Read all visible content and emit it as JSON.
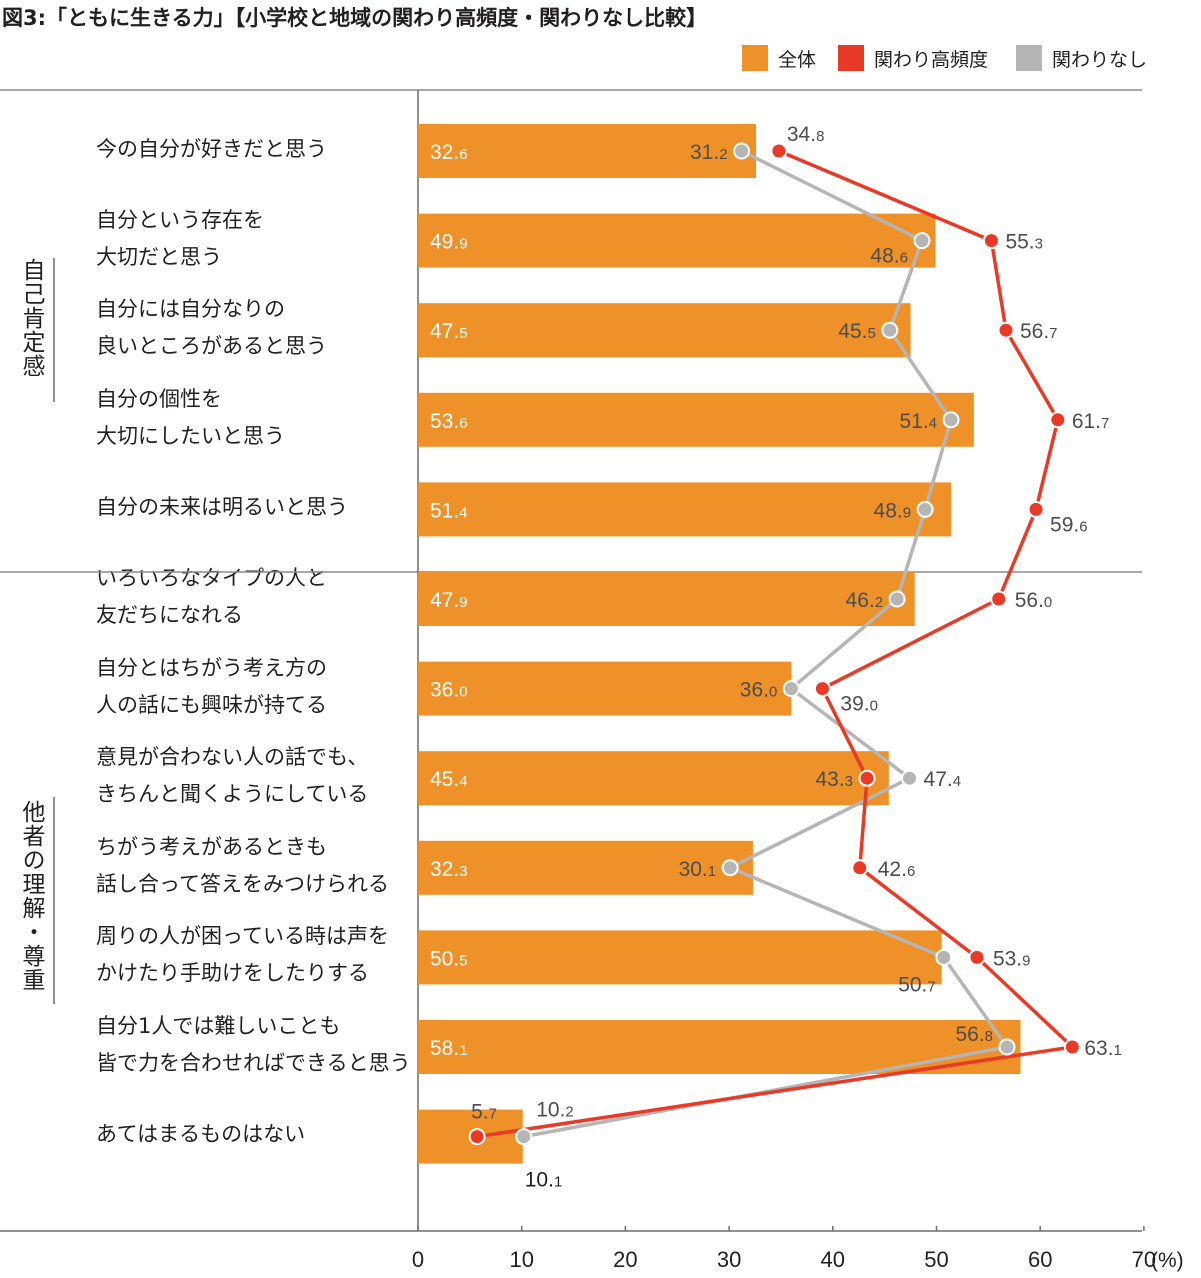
{
  "title": "図3:「ともに生きる力」【小学校と地域の関わり高頻度・関わりなし比較】",
  "legend": [
    {
      "label": "全体",
      "color": "#ed9128"
    },
    {
      "label": "関わり高頻度",
      "color": "#e83a26"
    },
    {
      "label": "関わりなし",
      "color": "#b5b5b5"
    }
  ],
  "groups": [
    {
      "label": "自己肯定感"
    },
    {
      "label": "他者の理解・尊重"
    }
  ],
  "chart_data": {
    "type": "bar",
    "categories": [
      "今の自分が好きだと思う",
      "自分という存在を\n大切だと思う",
      "自分には自分なりの\n良いところがあると思う",
      "自分の個性を\n大切にしたいと思う",
      "自分の未来は明るいと思う",
      "いろいろなタイプの人と\n友だちになれる",
      "自分とはちがう考え方の\n人の話にも興味が持てる",
      "意見が合わない人の話でも、\nきちんと聞くようにしている",
      "ちがう考えがあるときも\n話し合って答えをみつけられる",
      "周りの人が困っている時は声を\nかけたり手助けをしたりする",
      "自分1人では難しいことも\n皆で力を合わせればできると思う",
      "あてはまるものはない"
    ],
    "series": [
      {
        "name": "全体",
        "kind": "bar",
        "color": "#ed9128",
        "values": [
          32.6,
          49.9,
          47.5,
          53.6,
          51.4,
          47.9,
          36.0,
          45.4,
          32.3,
          50.5,
          58.1,
          10.1
        ]
      },
      {
        "name": "関わり高頻度",
        "kind": "line",
        "color": "#e83a26",
        "values": [
          34.8,
          55.3,
          56.7,
          61.7,
          59.6,
          56.0,
          39.0,
          43.3,
          42.6,
          53.9,
          63.1,
          5.7
        ]
      },
      {
        "name": "関わりなし",
        "kind": "line",
        "color": "#b5b5b5",
        "values": [
          31.2,
          48.6,
          45.5,
          51.4,
          48.9,
          46.2,
          36.0,
          47.4,
          30.1,
          50.7,
          56.8,
          10.2
        ]
      }
    ],
    "x_ticks": [
      0,
      10,
      20,
      30,
      40,
      50,
      60,
      70
    ],
    "xlim": [
      0,
      70
    ],
    "unit": "(%)"
  }
}
